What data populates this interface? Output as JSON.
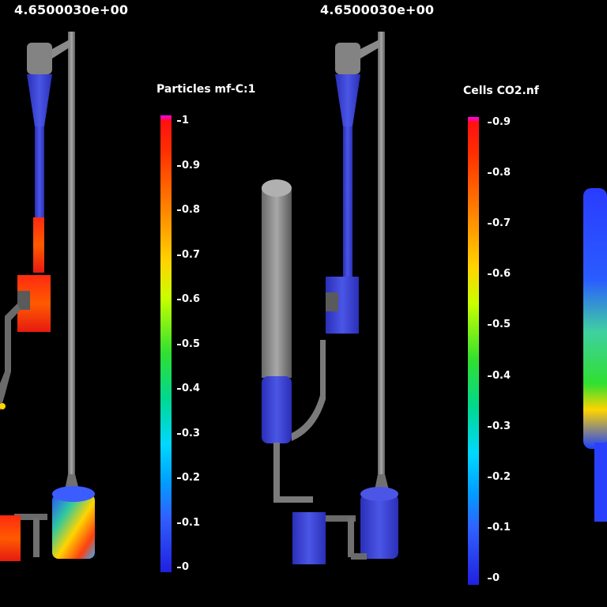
{
  "left_view": {
    "time": "4.6500030e+00",
    "colorbar_title": "Particles mf-C:1",
    "ticks": [
      "1",
      "0.9",
      "0.8",
      "0.7",
      "0.6",
      "0.5",
      "0.4",
      "0.3",
      "0.2",
      "0.1",
      "0"
    ]
  },
  "right_view": {
    "time": "4.6500030e+00",
    "colorbar_title": "Cells CO2.nf",
    "ticks": [
      "0.9",
      "0.8",
      "0.7",
      "0.6",
      "0.5",
      "0.4",
      "0.3",
      "0.2",
      "0.1",
      "0"
    ]
  },
  "colors": {
    "background": "#000000",
    "label": "#ffffff",
    "geometry": "#8c8c8c",
    "particle_low": "#2030e0",
    "particle_high": "#ff1a10"
  }
}
